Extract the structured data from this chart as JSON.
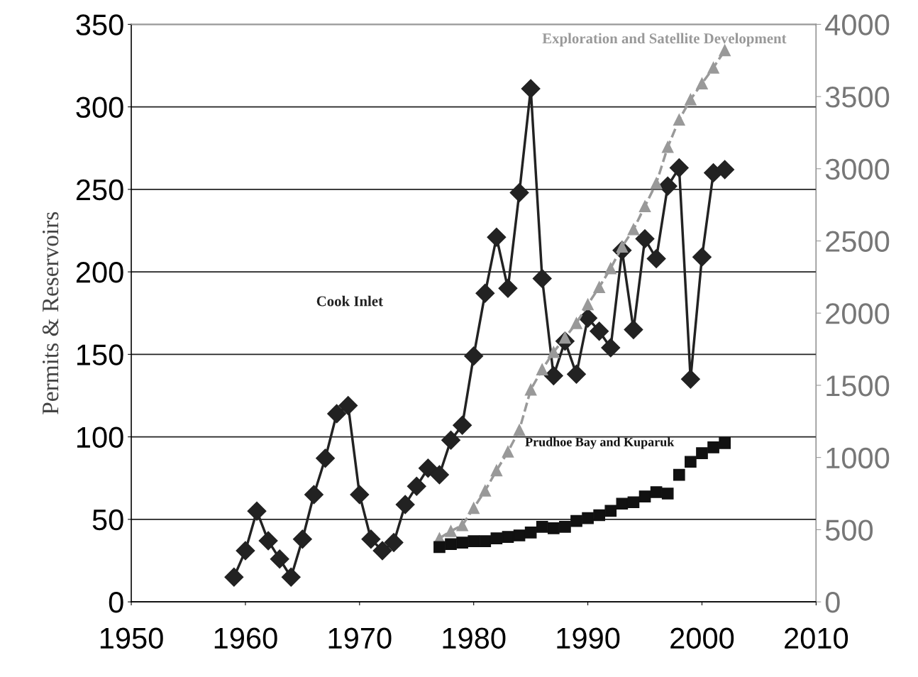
{
  "chart_data": {
    "type": "line",
    "ylabel": "Permits & Reservoirs",
    "xlim": [
      1950,
      2010
    ],
    "xticks": [
      1950,
      1960,
      1970,
      1980,
      1990,
      2000,
      2010
    ],
    "ylim": [
      0,
      350
    ],
    "yticks": [
      0,
      50,
      100,
      150,
      200,
      250,
      300,
      350
    ],
    "y2lim": [
      0,
      4000
    ],
    "y2ticks": [
      0,
      500,
      1000,
      1500,
      2000,
      2500,
      3000,
      3500,
      4000
    ],
    "grid": "y",
    "legend": false,
    "series": [
      {
        "name": "Cook Inlet",
        "color": "#222222",
        "marker": "diamond",
        "line_style": "solid",
        "x": [
          1959,
          1960,
          1961,
          1962,
          1963,
          1964,
          1965,
          1966,
          1967,
          1968,
          1969,
          1970,
          1971,
          1972,
          1973,
          1974,
          1975,
          1976,
          1977,
          1978,
          1979,
          1980,
          1981,
          1982,
          1983,
          1984,
          1985,
          1986,
          1987,
          1988,
          1989,
          1990,
          1991,
          1992,
          1993,
          1994,
          1995,
          1996,
          1997,
          1998,
          1999,
          2000,
          2001,
          2002
        ],
        "values": [
          15,
          31,
          55,
          37,
          26,
          15,
          38,
          65,
          87,
          114,
          119,
          65,
          38,
          31,
          36,
          59,
          70,
          81,
          77,
          98,
          107,
          149,
          187,
          221,
          190,
          248,
          311,
          196,
          137,
          158,
          138,
          172,
          164,
          154,
          213,
          165,
          220,
          208,
          252,
          263,
          135,
          209,
          260,
          262
        ]
      },
      {
        "name": "Exploration and Satellite Development",
        "color": "#999999",
        "marker": "triangle",
        "line_style": "dashed",
        "axis": "y2",
        "x": [
          1977,
          1978,
          1979,
          1980,
          1981,
          1982,
          1983,
          1984,
          1985,
          1986,
          1987,
          1988,
          1989,
          1990,
          1991,
          1992,
          1993,
          1994,
          1995,
          1996,
          1997,
          1998,
          1999,
          2000,
          2001,
          2002
        ],
        "values": [
          440,
          490,
          530,
          650,
          770,
          910,
          1040,
          1190,
          1470,
          1610,
          1730,
          1830,
          1930,
          2060,
          2180,
          2310,
          2460,
          2580,
          2740,
          2900,
          3150,
          3340,
          3480,
          3590,
          3700,
          3820
        ]
      },
      {
        "name": "Prudhoe Bay and Kuparuk",
        "type": "scatter",
        "color": "#111111",
        "marker": "square",
        "axis": "y2",
        "x": [
          1977,
          1978,
          1979,
          1980,
          1981,
          1982,
          1983,
          1984,
          1985,
          1986,
          1987,
          1988,
          1989,
          1990,
          1991,
          1992,
          1993,
          1994,
          1995,
          1996,
          1997,
          1998,
          1999,
          2000,
          2001,
          2002
        ],
        "values": [
          380,
          400,
          410,
          420,
          420,
          440,
          450,
          460,
          480,
          520,
          510,
          520,
          560,
          580,
          600,
          630,
          680,
          690,
          730,
          760,
          750,
          880,
          970,
          1030,
          1070,
          1100
        ]
      }
    ]
  }
}
